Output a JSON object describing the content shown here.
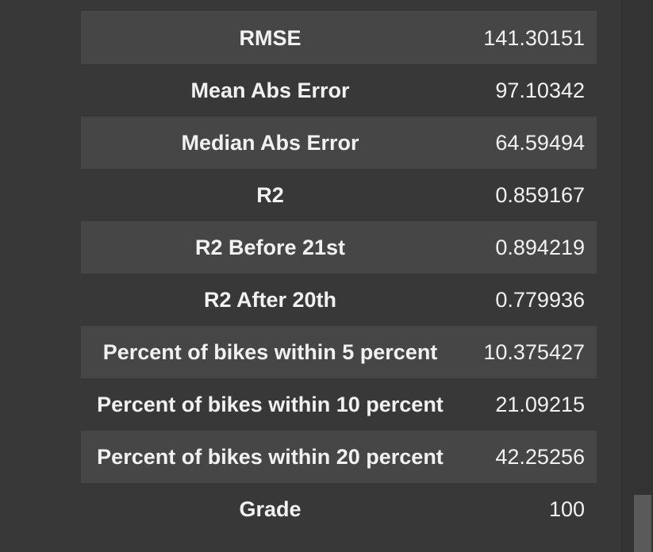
{
  "metrics_table": {
    "rows": [
      {
        "name": "RMSE",
        "value": "141.30151"
      },
      {
        "name": "Mean Abs Error",
        "value": "97.10342"
      },
      {
        "name": "Median Abs Error",
        "value": "64.59494"
      },
      {
        "name": "R2",
        "value": "0.859167"
      },
      {
        "name": "R2 Before 21st",
        "value": "0.894219"
      },
      {
        "name": "R2 After 20th",
        "value": "0.779936"
      },
      {
        "name": "Percent of bikes within 5 percent",
        "value": "10.375427"
      },
      {
        "name": "Percent of bikes within 10 percent",
        "value": "21.09215"
      },
      {
        "name": "Percent of bikes within 20 percent",
        "value": "42.25256"
      },
      {
        "name": "Grade",
        "value": "100"
      }
    ]
  },
  "colors": {
    "background": "#383838",
    "row_striped": "#464646",
    "text": "#f1f1f1"
  }
}
